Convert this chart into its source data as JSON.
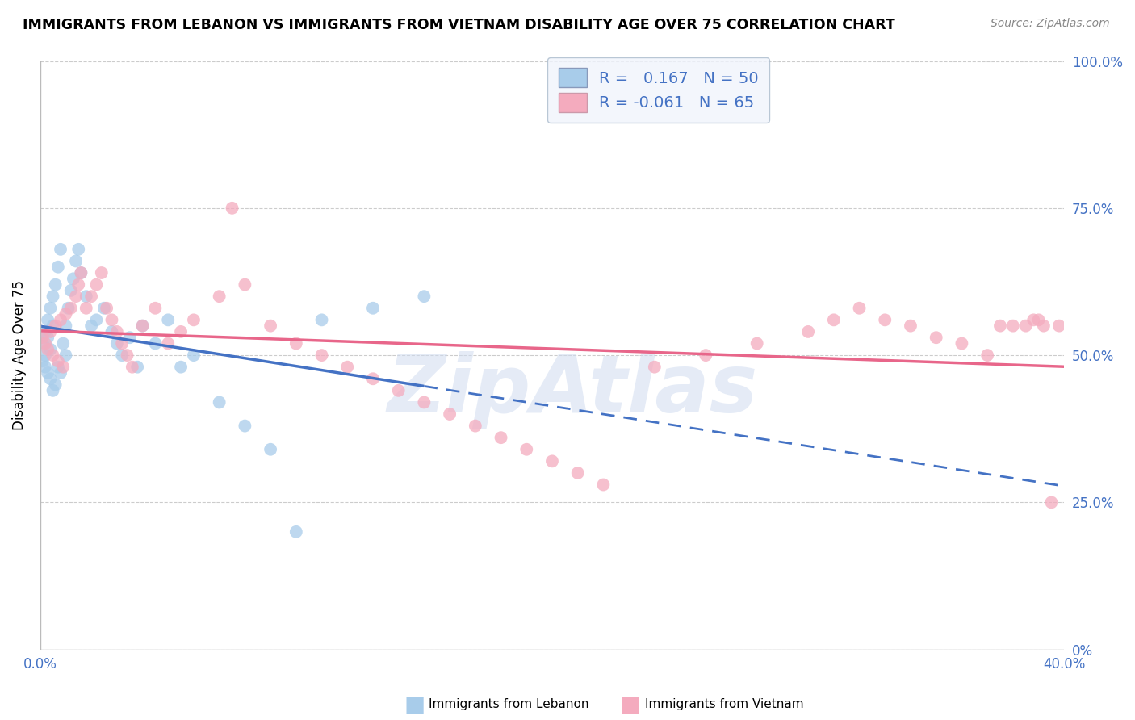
{
  "title": "IMMIGRANTS FROM LEBANON VS IMMIGRANTS FROM VIETNAM DISABILITY AGE OVER 75 CORRELATION CHART",
  "source": "Source: ZipAtlas.com",
  "ylabel": "Disability Age Over 75",
  "xlim": [
    0.0,
    0.4
  ],
  "ylim": [
    0.0,
    1.0
  ],
  "R_lebanon": 0.167,
  "N_lebanon": 50,
  "R_vietnam": -0.061,
  "N_vietnam": 65,
  "color_lebanon": "#A8CCEA",
  "color_vietnam": "#F4ABBE",
  "line_color_lebanon": "#4472C4",
  "line_color_vietnam": "#E8668A",
  "ytick_positions": [
    0.0,
    0.25,
    0.5,
    0.75,
    1.0
  ],
  "ytick_labels": [
    "0%",
    "25.0%",
    "50.0%",
    "75.0%",
    "100.0%"
  ],
  "bg_color": "#FFFFFF",
  "grid_color": "#CCCCCC",
  "watermark_color": "#D0DCF0",
  "legend_bg": "#F0F4FC",
  "legend_edge": "#AABBCC",
  "blue_x": [
    0.001,
    0.001,
    0.002,
    0.002,
    0.002,
    0.003,
    0.003,
    0.003,
    0.004,
    0.004,
    0.004,
    0.005,
    0.005,
    0.005,
    0.006,
    0.006,
    0.007,
    0.007,
    0.008,
    0.008,
    0.009,
    0.01,
    0.01,
    0.011,
    0.012,
    0.013,
    0.014,
    0.015,
    0.016,
    0.018,
    0.02,
    0.022,
    0.025,
    0.028,
    0.03,
    0.032,
    0.035,
    0.038,
    0.04,
    0.045,
    0.05,
    0.055,
    0.06,
    0.07,
    0.08,
    0.09,
    0.1,
    0.11,
    0.13,
    0.15
  ],
  "blue_y": [
    0.52,
    0.49,
    0.54,
    0.48,
    0.5,
    0.56,
    0.47,
    0.53,
    0.58,
    0.46,
    0.51,
    0.6,
    0.44,
    0.55,
    0.62,
    0.45,
    0.65,
    0.48,
    0.68,
    0.47,
    0.52,
    0.55,
    0.5,
    0.58,
    0.61,
    0.63,
    0.66,
    0.68,
    0.64,
    0.6,
    0.55,
    0.56,
    0.58,
    0.54,
    0.52,
    0.5,
    0.53,
    0.48,
    0.55,
    0.52,
    0.56,
    0.48,
    0.5,
    0.42,
    0.38,
    0.34,
    0.2,
    0.56,
    0.58,
    0.6
  ],
  "pink_x": [
    0.001,
    0.002,
    0.003,
    0.004,
    0.005,
    0.006,
    0.007,
    0.008,
    0.009,
    0.01,
    0.012,
    0.014,
    0.015,
    0.016,
    0.018,
    0.02,
    0.022,
    0.024,
    0.026,
    0.028,
    0.03,
    0.032,
    0.034,
    0.036,
    0.04,
    0.045,
    0.05,
    0.055,
    0.06,
    0.07,
    0.075,
    0.08,
    0.09,
    0.1,
    0.11,
    0.12,
    0.13,
    0.14,
    0.15,
    0.16,
    0.17,
    0.18,
    0.19,
    0.2,
    0.21,
    0.22,
    0.24,
    0.26,
    0.28,
    0.3,
    0.31,
    0.32,
    0.33,
    0.34,
    0.35,
    0.36,
    0.37,
    0.375,
    0.38,
    0.385,
    0.388,
    0.39,
    0.392,
    0.395,
    0.398
  ],
  "pink_y": [
    0.53,
    0.52,
    0.51,
    0.54,
    0.5,
    0.55,
    0.49,
    0.56,
    0.48,
    0.57,
    0.58,
    0.6,
    0.62,
    0.64,
    0.58,
    0.6,
    0.62,
    0.64,
    0.58,
    0.56,
    0.54,
    0.52,
    0.5,
    0.48,
    0.55,
    0.58,
    0.52,
    0.54,
    0.56,
    0.6,
    0.75,
    0.62,
    0.55,
    0.52,
    0.5,
    0.48,
    0.46,
    0.44,
    0.42,
    0.4,
    0.38,
    0.36,
    0.34,
    0.32,
    0.3,
    0.28,
    0.48,
    0.5,
    0.52,
    0.54,
    0.56,
    0.58,
    0.56,
    0.55,
    0.53,
    0.52,
    0.5,
    0.55,
    0.55,
    0.55,
    0.56,
    0.56,
    0.55,
    0.25,
    0.55
  ]
}
